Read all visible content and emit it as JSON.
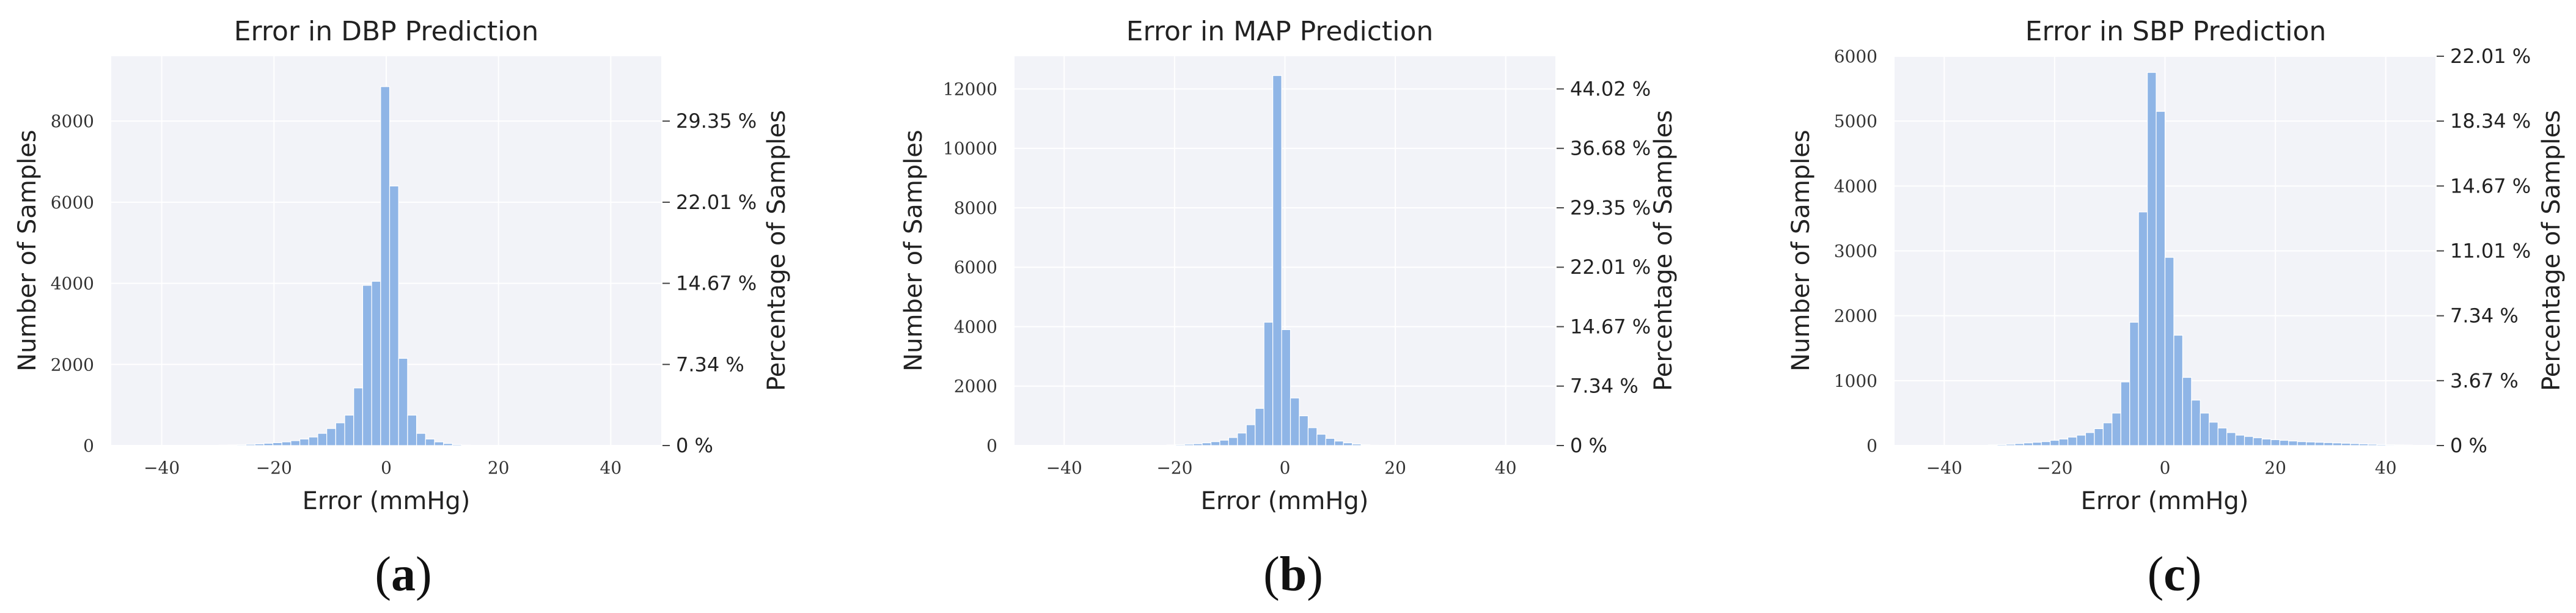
{
  "chart_data": [
    {
      "type": "bar",
      "panel_label": "a",
      "title": "Error in DBP Prediction",
      "xlabel": "Error (mmHg)",
      "ylabel": "Number of Samples",
      "y2label": "Percentage of Samples",
      "xlim": [
        -49,
        49
      ],
      "ylim": [
        0,
        9600
      ],
      "xticks": [
        -40,
        -20,
        0,
        20,
        40
      ],
      "xtick_labels": [
        "−40",
        "−20",
        "0",
        "20",
        "40"
      ],
      "yticks": [
        0,
        2000,
        4000,
        6000,
        8000
      ],
      "y2ticks": [
        0,
        2000,
        4000,
        6000,
        8000
      ],
      "y2tick_labels": [
        "0 %",
        "7.34 %",
        "14.67 %",
        "22.01 %",
        "29.35 %"
      ],
      "grid": true,
      "bin_width": 1.6,
      "bars": [
        {
          "x": -30.6,
          "value": 5
        },
        {
          "x": -29.0,
          "value": 10
        },
        {
          "x": -27.4,
          "value": 15
        },
        {
          "x": -25.8,
          "value": 20
        },
        {
          "x": -24.2,
          "value": 30
        },
        {
          "x": -22.6,
          "value": 40
        },
        {
          "x": -21.0,
          "value": 55
        },
        {
          "x": -19.4,
          "value": 70
        },
        {
          "x": -17.8,
          "value": 90
        },
        {
          "x": -16.2,
          "value": 120
        },
        {
          "x": -14.6,
          "value": 160
        },
        {
          "x": -13.0,
          "value": 210
        },
        {
          "x": -11.4,
          "value": 300
        },
        {
          "x": -9.8,
          "value": 420
        },
        {
          "x": -8.2,
          "value": 560
        },
        {
          "x": -6.6,
          "value": 750
        },
        {
          "x": -5.0,
          "value": 1420
        },
        {
          "x": -3.4,
          "value": 3950
        },
        {
          "x": -1.8,
          "value": 4050
        },
        {
          "x": -0.2,
          "value": 8850
        },
        {
          "x": 1.4,
          "value": 6400
        },
        {
          "x": 3.0,
          "value": 2150
        },
        {
          "x": 4.6,
          "value": 750
        },
        {
          "x": 6.2,
          "value": 300
        },
        {
          "x": 7.8,
          "value": 160
        },
        {
          "x": 9.4,
          "value": 90
        },
        {
          "x": 11.0,
          "value": 50
        },
        {
          "x": 12.6,
          "value": 25
        },
        {
          "x": 14.2,
          "value": 10
        }
      ]
    },
    {
      "type": "bar",
      "panel_label": "b",
      "title": "Error in MAP Prediction",
      "xlabel": "Error (mmHg)",
      "ylabel": "Number of Samples",
      "y2label": "Percentage of Samples",
      "xlim": [
        -49,
        49
      ],
      "ylim": [
        0,
        13100
      ],
      "xticks": [
        -40,
        -20,
        0,
        20,
        40
      ],
      "xtick_labels": [
        "−40",
        "−20",
        "0",
        "20",
        "40"
      ],
      "yticks": [
        0,
        2000,
        4000,
        6000,
        8000,
        10000,
        12000
      ],
      "y2ticks": [
        0,
        2000,
        4000,
        6000,
        8000,
        10000,
        12000
      ],
      "y2tick_labels": [
        "0 %",
        "7.34 %",
        "14.67 %",
        "22.01 %",
        "29.35 %",
        "36.68 %",
        "44.02 %"
      ],
      "grid": true,
      "bin_width": 1.6,
      "bars": [
        {
          "x": -20.6,
          "value": 20
        },
        {
          "x": -19.0,
          "value": 30
        },
        {
          "x": -17.4,
          "value": 45
        },
        {
          "x": -15.8,
          "value": 60
        },
        {
          "x": -14.2,
          "value": 90
        },
        {
          "x": -12.6,
          "value": 130
        },
        {
          "x": -11.0,
          "value": 180
        },
        {
          "x": -9.4,
          "value": 270
        },
        {
          "x": -7.8,
          "value": 420
        },
        {
          "x": -6.2,
          "value": 700
        },
        {
          "x": -4.6,
          "value": 1250
        },
        {
          "x": -3.0,
          "value": 4150
        },
        {
          "x": -1.4,
          "value": 12450
        },
        {
          "x": 0.2,
          "value": 3900
        },
        {
          "x": 1.8,
          "value": 1600
        },
        {
          "x": 3.4,
          "value": 1000
        },
        {
          "x": 5.0,
          "value": 600
        },
        {
          "x": 6.6,
          "value": 380
        },
        {
          "x": 8.2,
          "value": 240
        },
        {
          "x": 9.8,
          "value": 150
        },
        {
          "x": 11.4,
          "value": 90
        },
        {
          "x": 13.0,
          "value": 50
        },
        {
          "x": 14.6,
          "value": 25
        },
        {
          "x": 16.2,
          "value": 10
        }
      ]
    },
    {
      "type": "bar",
      "panel_label": "c",
      "title": "Error in SBP Prediction",
      "xlabel": "Error (mmHg)",
      "ylabel": "Number of Samples",
      "y2label": "Percentage of Samples",
      "xlim": [
        -49,
        49
      ],
      "ylim": [
        0,
        6000
      ],
      "xticks": [
        -40,
        -20,
        0,
        20,
        40
      ],
      "xtick_labels": [
        "−40",
        "−20",
        "0",
        "20",
        "40"
      ],
      "yticks": [
        0,
        1000,
        2000,
        3000,
        4000,
        5000,
        6000
      ],
      "y2ticks": [
        0,
        1000,
        2000,
        3000,
        4000,
        5000,
        6000
      ],
      "y2tick_labels": [
        "0 %",
        "3.67 %",
        "7.34 %",
        "11.01 %",
        "14.67 %",
        "18.34 %",
        "22.01 %"
      ],
      "grid": true,
      "bin_width": 1.6,
      "bars": [
        {
          "x": -31.2,
          "value": 10
        },
        {
          "x": -29.6,
          "value": 15
        },
        {
          "x": -28.0,
          "value": 20
        },
        {
          "x": -26.4,
          "value": 30
        },
        {
          "x": -24.8,
          "value": 40
        },
        {
          "x": -23.2,
          "value": 50
        },
        {
          "x": -21.6,
          "value": 60
        },
        {
          "x": -20.0,
          "value": 80
        },
        {
          "x": -18.4,
          "value": 100
        },
        {
          "x": -16.8,
          "value": 130
        },
        {
          "x": -15.2,
          "value": 160
        },
        {
          "x": -13.6,
          "value": 200
        },
        {
          "x": -12.0,
          "value": 260
        },
        {
          "x": -10.4,
          "value": 350
        },
        {
          "x": -8.8,
          "value": 500
        },
        {
          "x": -7.2,
          "value": 980
        },
        {
          "x": -5.6,
          "value": 1900
        },
        {
          "x": -4.0,
          "value": 3600
        },
        {
          "x": -2.4,
          "value": 5750
        },
        {
          "x": -0.8,
          "value": 5150
        },
        {
          "x": 0.8,
          "value": 2900
        },
        {
          "x": 2.4,
          "value": 1700
        },
        {
          "x": 4.0,
          "value": 1050
        },
        {
          "x": 5.6,
          "value": 700
        },
        {
          "x": 7.2,
          "value": 500
        },
        {
          "x": 8.8,
          "value": 360
        },
        {
          "x": 10.4,
          "value": 270
        },
        {
          "x": 12.0,
          "value": 200
        },
        {
          "x": 13.6,
          "value": 160
        },
        {
          "x": 15.2,
          "value": 140
        },
        {
          "x": 16.8,
          "value": 120
        },
        {
          "x": 18.4,
          "value": 100
        },
        {
          "x": 20.0,
          "value": 90
        },
        {
          "x": 21.6,
          "value": 80
        },
        {
          "x": 23.2,
          "value": 70
        },
        {
          "x": 24.8,
          "value": 60
        },
        {
          "x": 26.4,
          "value": 55
        },
        {
          "x": 28.0,
          "value": 50
        },
        {
          "x": 29.6,
          "value": 45
        },
        {
          "x": 31.2,
          "value": 40
        },
        {
          "x": 32.8,
          "value": 35
        },
        {
          "x": 34.4,
          "value": 30
        },
        {
          "x": 36.0,
          "value": 25
        },
        {
          "x": 37.6,
          "value": 20
        },
        {
          "x": 39.2,
          "value": 15
        },
        {
          "x": 40.8,
          "value": 12
        },
        {
          "x": 42.4,
          "value": 10
        },
        {
          "x": 44.0,
          "value": 8
        }
      ]
    }
  ],
  "colors": {
    "bar": "#8fb5e6",
    "bar_edge": "#7ba6de",
    "plot_background": "#f2f3f8",
    "grid": "#ffffff"
  }
}
